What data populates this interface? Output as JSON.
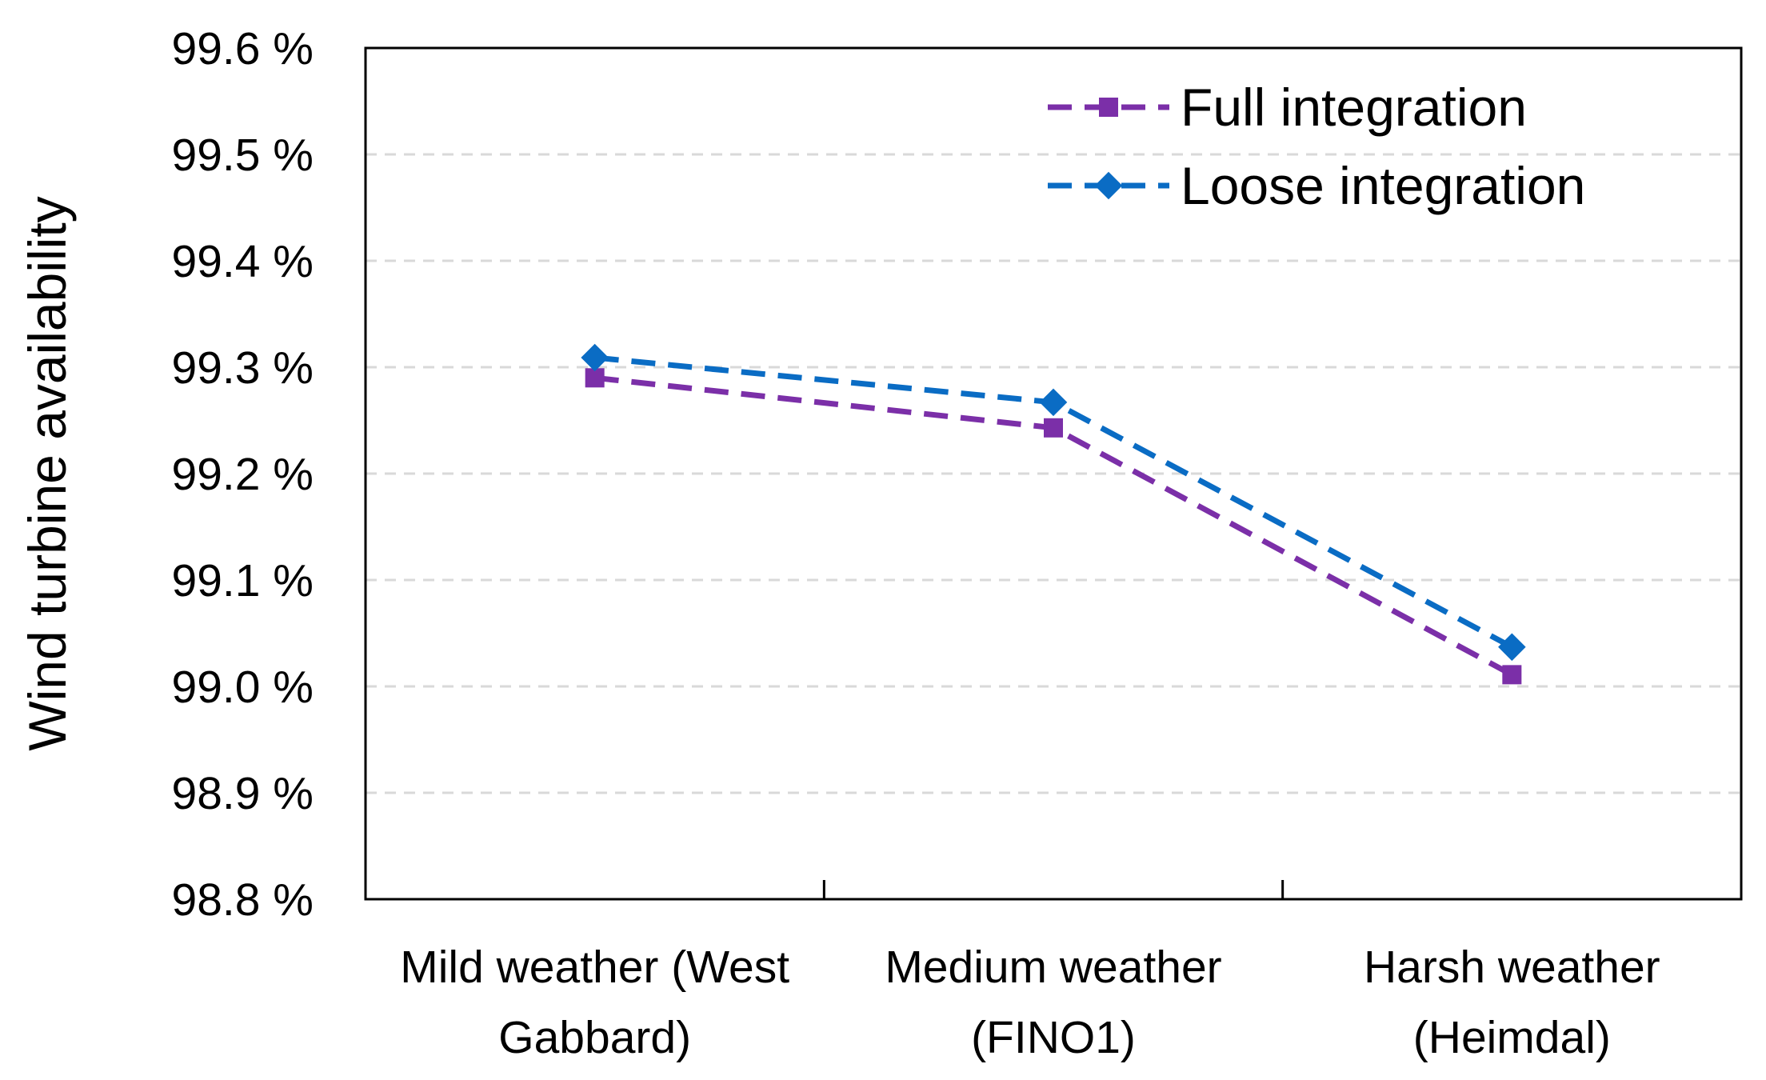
{
  "chart_data": {
    "type": "line",
    "title": "",
    "xlabel": "",
    "ylabel": "Wind turbine availability",
    "categories": [
      [
        "Mild weather (West",
        "Gabbard)"
      ],
      [
        "Medium weather",
        "(FINO1)"
      ],
      [
        "Harsh weather",
        "(Heimdal)"
      ]
    ],
    "ylim": [
      98.8,
      99.6
    ],
    "yticks": [
      98.8,
      98.9,
      99.0,
      99.1,
      99.2,
      99.3,
      99.4,
      99.5,
      99.6
    ],
    "ytick_labels": [
      "98.8 %",
      "98.9 %",
      "99.0 %",
      "99.1 %",
      "99.2 %",
      "99.3 %",
      "99.4 %",
      "99.5 %",
      "99.6 %"
    ],
    "grid": true,
    "legend_position": "top-right",
    "series": [
      {
        "name": "Full integration",
        "values": [
          99.29,
          99.243,
          99.011
        ],
        "color": "#7B2FA8",
        "marker": "square",
        "line_style": "dashed"
      },
      {
        "name": "Loose integration",
        "values": [
          99.309,
          99.267,
          99.037
        ],
        "color": "#0A6CC4",
        "marker": "diamond",
        "line_style": "dashed"
      }
    ]
  }
}
